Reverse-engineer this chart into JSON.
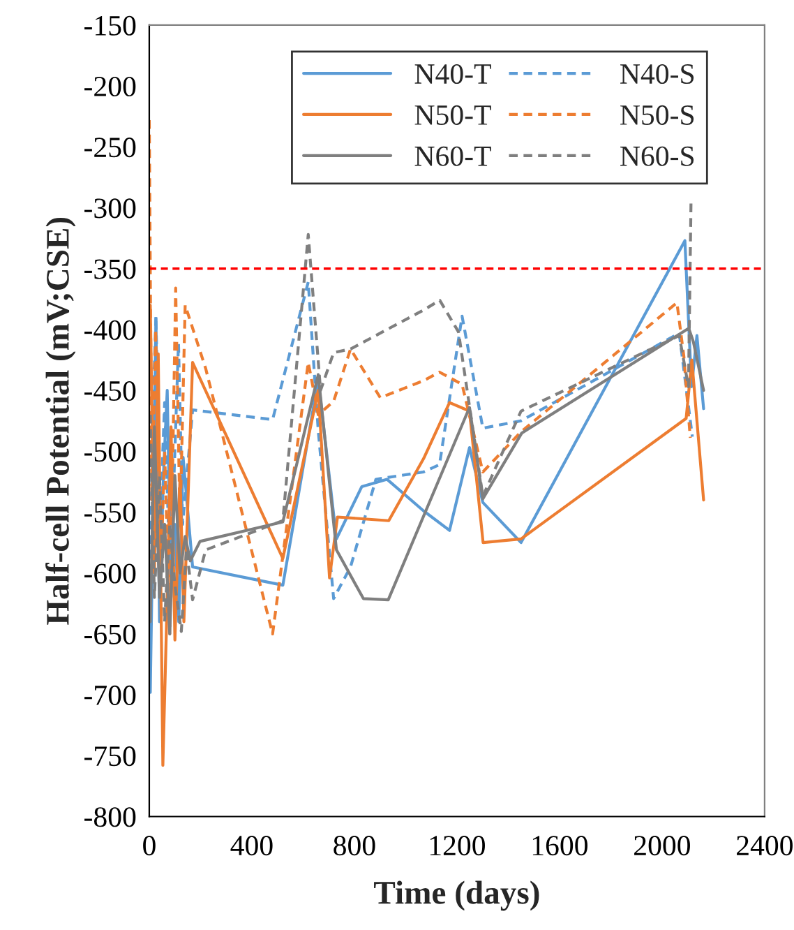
{
  "chart_data": {
    "type": "line",
    "xlabel": "Time (days)",
    "ylabel": "Half-cell Potential (mV;CSE)",
    "xlim": [
      0,
      2400
    ],
    "xticks": [
      0,
      400,
      800,
      1200,
      1600,
      2000,
      2400
    ],
    "ylim": [
      -800,
      -150
    ],
    "yticks": [
      -800,
      -750,
      -700,
      -650,
      -600,
      -550,
      -500,
      -450,
      -400,
      -350,
      -300,
      -250,
      -200,
      -150
    ],
    "grid": false,
    "legend": "top right",
    "ref_lines": [
      {
        "axis": "y",
        "value": -350,
        "color": "#ff0000",
        "line_style": "dashed"
      }
    ],
    "series": [
      {
        "name": "N40-T",
        "color": "#5b9bd5",
        "line_style": "solid",
        "x": [
          4,
          14,
          26,
          40,
          55,
          70,
          85,
          100,
          115,
          132,
          169,
          521,
          659,
          730,
          829,
          927,
          1070,
          1171,
          1249,
          1301,
          1450,
          2089,
          2115,
          2136,
          2162
        ],
        "values": [
          -698,
          -560,
          -391,
          -640,
          -520,
          -450,
          -620,
          -560,
          -640,
          -505,
          -595,
          -610,
          -441,
          -572,
          -529,
          -523,
          -549,
          -565,
          -497,
          -542,
          -575,
          -327,
          -447,
          -405,
          -465
        ]
      },
      {
        "name": "N40-S",
        "color": "#5b9bd5",
        "line_style": "dashed",
        "x": [
          4,
          14,
          26,
          42,
          60,
          80,
          95,
          114,
          130,
          169,
          481,
          620,
          659,
          719,
          785,
          884,
          1070,
          1132,
          1220,
          1301,
          1450,
          2067,
          2118
        ],
        "values": [
          -600,
          -470,
          -389,
          -560,
          -460,
          -600,
          -530,
          -411,
          -560,
          -466,
          -474,
          -361,
          -483,
          -621,
          -595,
          -523,
          -517,
          -511,
          -389,
          -481,
          -475,
          -403,
          -488
        ]
      },
      {
        "name": "N50-T",
        "color": "#ed7d31",
        "line_style": "solid",
        "x": [
          4,
          20,
          35,
          53,
          70,
          85,
          100,
          120,
          135,
          169,
          521,
          659,
          703,
          734,
          934,
          1070,
          1171,
          1249,
          1302,
          1450,
          2094,
          2116,
          2162
        ],
        "values": [
          -380,
          -600,
          -420,
          -758,
          -620,
          -480,
          -655,
          -520,
          -640,
          -427,
          -588,
          -450,
          -604,
          -554,
          -557,
          -506,
          -460,
          -467,
          -575,
          -572,
          -473,
          -425,
          -540
        ]
      },
      {
        "name": "N50-S",
        "color": "#ed7d31",
        "line_style": "dashed",
        "x": [
          0,
          10,
          25,
          45,
          60,
          80,
          103,
          120,
          140,
          220,
          481,
          620,
          659,
          719,
          785,
          901,
          1070,
          1132,
          1220,
          1301,
          1450,
          2058,
          2085,
          2110
        ],
        "values": [
          -228,
          -540,
          -400,
          -600,
          -500,
          -650,
          -366,
          -560,
          -380,
          -432,
          -650,
          -427,
          -470,
          -459,
          -416,
          -456,
          -442,
          -435,
          -445,
          -517,
          -484,
          -378,
          -422,
          -489
        ]
      },
      {
        "name": "N60-T",
        "color": "#7f7f7f",
        "line_style": "solid",
        "x": [
          4,
          20,
          40,
          60,
          80,
          100,
          120,
          140,
          160,
          198,
          521,
          659,
          730,
          835,
          932,
          1249,
          1301,
          1453,
          2104,
          2122,
          2162
        ],
        "values": [
          -640,
          -480,
          -620,
          -560,
          -650,
          -520,
          -600,
          -570,
          -590,
          -574,
          -558,
          -437,
          -581,
          -621,
          -622,
          -464,
          -539,
          -485,
          -399,
          -410,
          -450
        ]
      },
      {
        "name": "N60-S",
        "color": "#7f7f7f",
        "line_style": "dashed",
        "x": [
          4,
          20,
          40,
          60,
          80,
          100,
          125,
          145,
          169,
          220,
          521,
          620,
          668,
          719,
          785,
          1070,
          1133,
          1206,
          1301,
          1450,
          2067,
          2103,
          2113
        ],
        "values": [
          -470,
          -620,
          -520,
          -640,
          -560,
          -610,
          -648,
          -580,
          -622,
          -581,
          -557,
          -322,
          -450,
          -419,
          -416,
          -384,
          -376,
          -402,
          -537,
          -467,
          -405,
          -447,
          -293
        ]
      }
    ]
  }
}
